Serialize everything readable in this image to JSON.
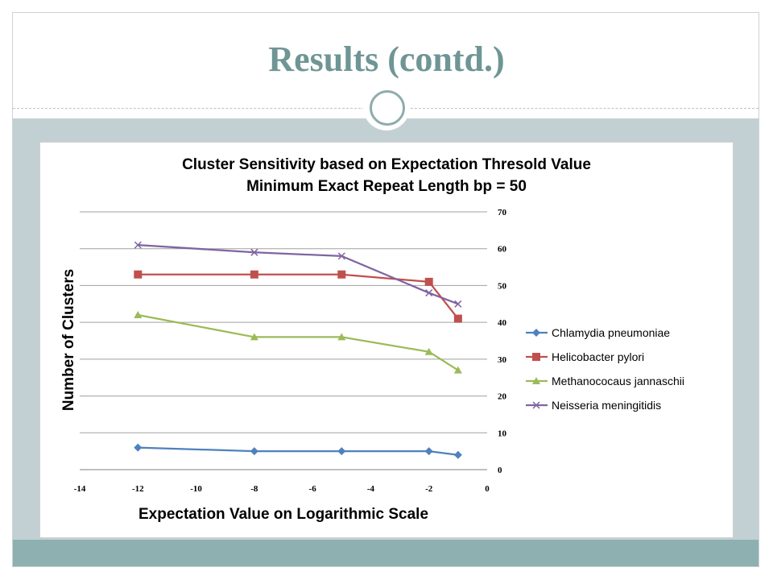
{
  "slide": {
    "title": "Results (contd.)"
  },
  "chart_data": {
    "type": "line",
    "title": "Cluster Sensitivity based on Expectation Thresold Value",
    "subtitle": "Minimum Exact Repeat Length bp = 50",
    "xlabel": "Expectation Value on Logarithmic Scale",
    "ylabel": "Number of Clusters",
    "xlim": [
      -14,
      0
    ],
    "ylim": [
      0,
      70
    ],
    "x_ticks": [
      -14,
      -12,
      -10,
      -8,
      -6,
      -4,
      -2,
      0
    ],
    "y_ticks": [
      0,
      10,
      20,
      30,
      40,
      50,
      60,
      70
    ],
    "y_axis_side": "right",
    "grid": "horizontal",
    "legend_position": "right",
    "x": [
      -12,
      -8,
      -5,
      -2,
      -1
    ],
    "series": [
      {
        "name": "Chlamydia pneumoniae",
        "values": [
          6,
          5,
          5,
          5,
          4
        ],
        "color": "#4f81bd",
        "marker": "diamond"
      },
      {
        "name": "Helicobacter pylori",
        "values": [
          53,
          53,
          53,
          51,
          41
        ],
        "color": "#c0504d",
        "marker": "square"
      },
      {
        "name": "Methanococaus jannaschii",
        "values": [
          42,
          36,
          36,
          32,
          27
        ],
        "color": "#9bbb59",
        "marker": "triangle"
      },
      {
        "name": "Neisseria meningitidis",
        "values": [
          61,
          59,
          58,
          48,
          45
        ],
        "color": "#8064a2",
        "marker": "x"
      }
    ]
  }
}
